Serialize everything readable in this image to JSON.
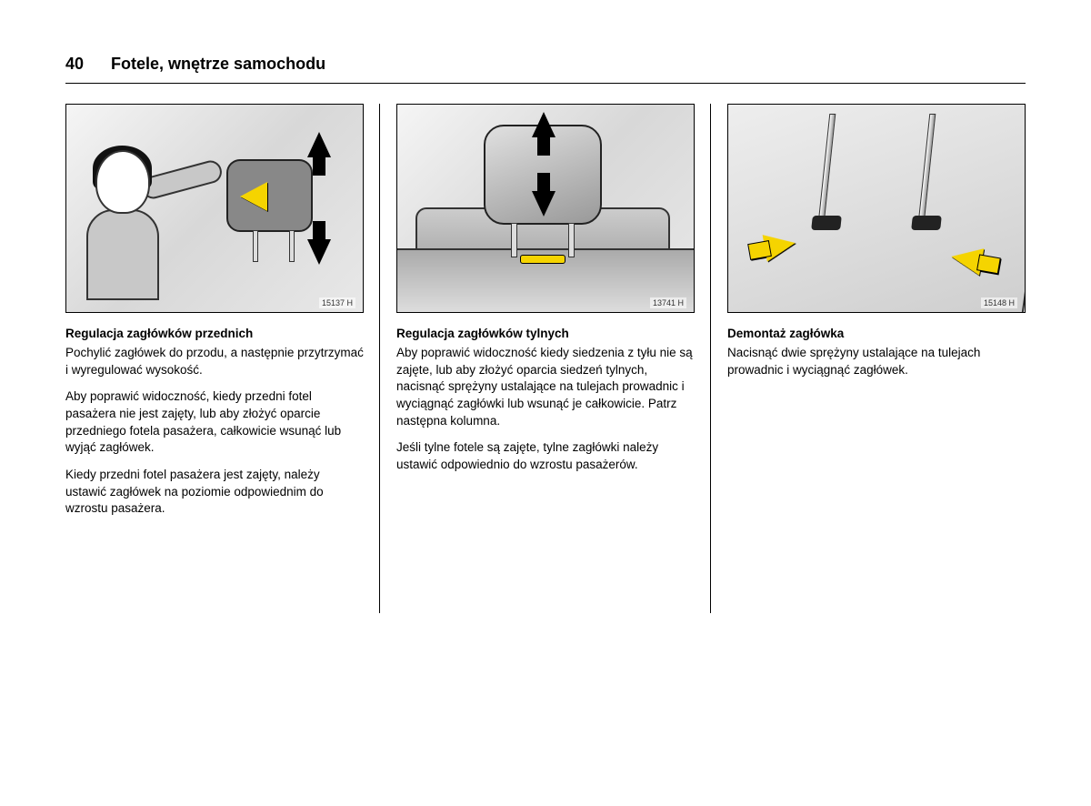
{
  "page": {
    "number": "40",
    "chapter_title": "Fotele, wnętrze samochodu"
  },
  "columns": [
    {
      "illustration_code": "15137 H",
      "heading": "Regulacja zagłówków przednich",
      "paragraphs": [
        "Pochylić zagłówek do przodu, a następnie przytrzymać i wyregulować wysokość.",
        "Aby poprawić widoczność, kiedy przedni fotel pasażera nie jest zajęty, lub aby złożyć oparcie przedniego fotela pasażera, całkowicie wsunąć lub wyjąć zagłówek.",
        "Kiedy przedni fotel pasażera jest zajęty, należy ustawić zagłówek na poziomie odpowiednim do wzrostu pasażera."
      ]
    },
    {
      "illustration_code": "13741 H",
      "heading": "Regulacja zagłówków tylnych",
      "paragraphs": [
        "Aby poprawić widoczność kiedy siedzenia z tyłu nie są zajęte, lub aby złożyć oparcia siedzeń tylnych, nacisnąć sprężyny ustalające na tulejach prowadnic i wyciągnąć zagłówki lub wsunąć je całkowicie. Patrz następna kolumna.",
        "Jeśli tylne fotele są zajęte, tylne zagłówki należy ustawić odpowiednio do wzrostu pasażerów."
      ]
    },
    {
      "illustration_code": "15148 H",
      "heading": "Demontaż zagłówka",
      "paragraphs": [
        "Nacisnąć dwie sprężyny ustalające na tulejach prowadnic i wyciągnąć zagłówek."
      ]
    }
  ],
  "style": {
    "page_bg": "#ffffff",
    "text_color": "#000000",
    "rule_color": "#000000",
    "arrow_yellow": "#f5d400",
    "arrow_black": "#000000",
    "heading_fontsize": 13.5,
    "body_fontsize": 13.5,
    "page_number_fontsize": 18,
    "chapter_fontsize": 18
  }
}
